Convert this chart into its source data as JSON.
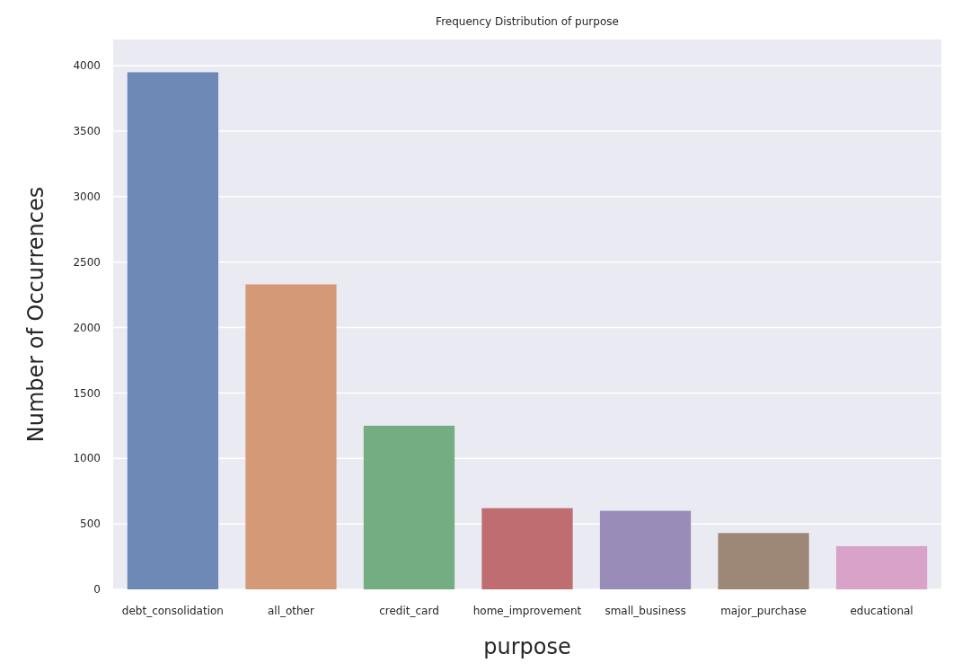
{
  "chart_data": {
    "type": "bar",
    "title": "Frequency Distribution of purpose",
    "xlabel": "purpose",
    "ylabel": "Number of Occurrences",
    "categories": [
      "debt_consolidation",
      "all_other",
      "credit_card",
      "home_improvement",
      "small_business",
      "major_purchase",
      "educational"
    ],
    "values": [
      3950,
      2330,
      1250,
      620,
      600,
      430,
      330
    ],
    "colors": [
      "#6f89b6",
      "#d49a78",
      "#75ad82",
      "#c06d72",
      "#9a8cb8",
      "#9d8877",
      "#d9a2c8"
    ],
    "ylim": [
      0,
      4200
    ],
    "yticks": [
      0,
      500,
      1000,
      1500,
      2000,
      2500,
      3000,
      3500,
      4000
    ],
    "grid": "y"
  }
}
